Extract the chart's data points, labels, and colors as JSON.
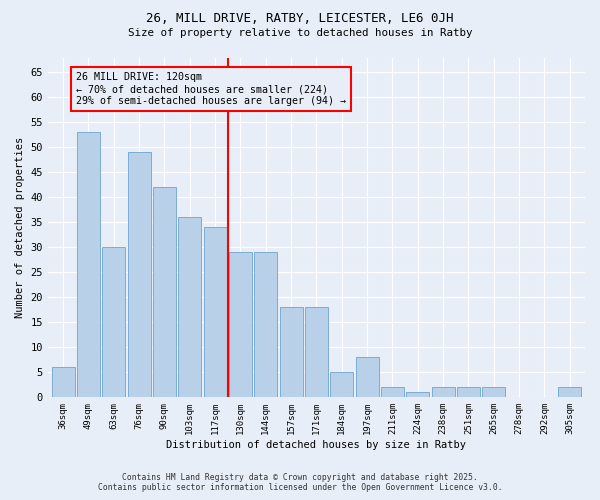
{
  "title1": "26, MILL DRIVE, RATBY, LEICESTER, LE6 0JH",
  "title2": "Size of property relative to detached houses in Ratby",
  "xlabel": "Distribution of detached houses by size in Ratby",
  "ylabel": "Number of detached properties",
  "categories": [
    "36sqm",
    "49sqm",
    "63sqm",
    "76sqm",
    "90sqm",
    "103sqm",
    "117sqm",
    "130sqm",
    "144sqm",
    "157sqm",
    "171sqm",
    "184sqm",
    "197sqm",
    "211sqm",
    "224sqm",
    "238sqm",
    "251sqm",
    "265sqm",
    "278sqm",
    "292sqm",
    "305sqm"
  ],
  "values": [
    6,
    53,
    30,
    49,
    42,
    36,
    34,
    29,
    29,
    18,
    18,
    5,
    8,
    2,
    1,
    2,
    2,
    2,
    0,
    0,
    2
  ],
  "bar_color": "#b8d0e8",
  "bar_edge_color": "#7aadd4",
  "vline_x": 6.5,
  "ylim": [
    0,
    68
  ],
  "yticks": [
    0,
    5,
    10,
    15,
    20,
    25,
    30,
    35,
    40,
    45,
    50,
    55,
    60,
    65
  ],
  "annotation_text": "26 MILL DRIVE: 120sqm\n← 70% of detached houses are smaller (224)\n29% of semi-detached houses are larger (94) →",
  "bg_color": "#e8eef7",
  "footer1": "Contains HM Land Registry data © Crown copyright and database right 2025.",
  "footer2": "Contains public sector information licensed under the Open Government Licence v3.0."
}
